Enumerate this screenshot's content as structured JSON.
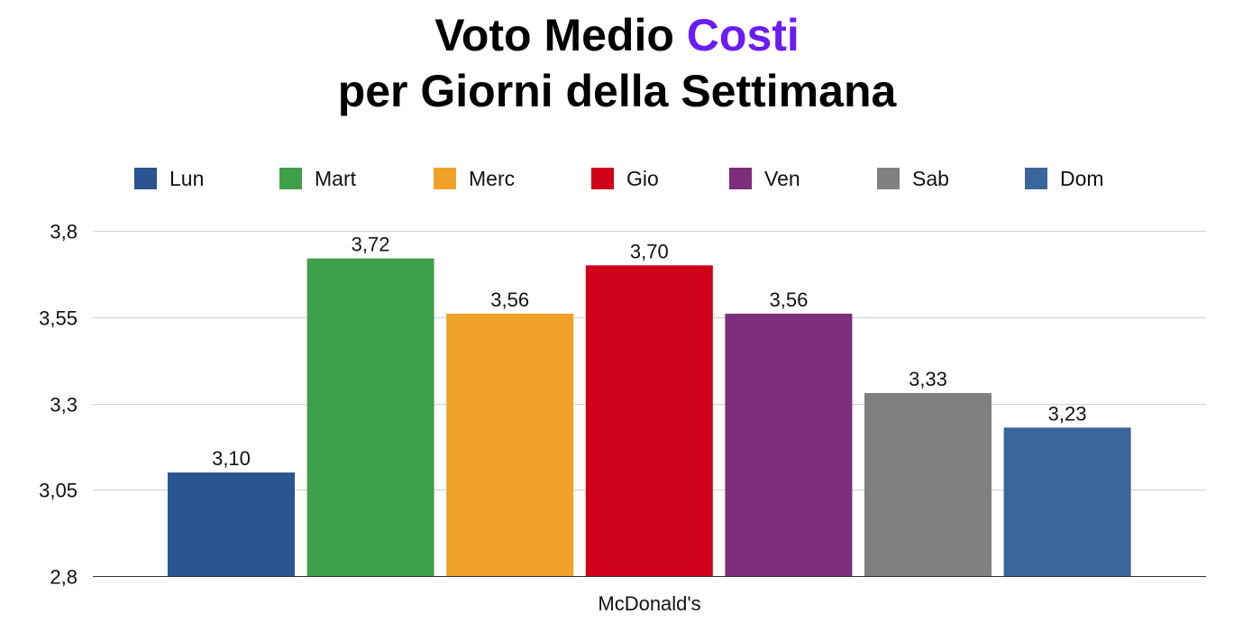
{
  "chart_data": {
    "type": "bar",
    "title_prefix": "Voto Medio",
    "title_highlight": "Costi",
    "title_line2": "per Giorni della Settimana",
    "categories": [
      "McDonald's"
    ],
    "series": [
      {
        "name": "Lun",
        "values": [
          3.1
        ],
        "label": "3,10",
        "color": "#2a5590"
      },
      {
        "name": "Mart",
        "values": [
          3.72
        ],
        "label": "3,72",
        "color": "#409f4a"
      },
      {
        "name": "Merc",
        "values": [
          3.56
        ],
        "label": "3,56",
        "color": "#f0a128"
      },
      {
        "name": "Gio",
        "values": [
          3.7
        ],
        "label": "3,70",
        "color": "#cf0019"
      },
      {
        "name": "Ven",
        "values": [
          3.56
        ],
        "label": "3,56",
        "color": "#7c2e7c"
      },
      {
        "name": "Sab",
        "values": [
          3.33
        ],
        "label": "3,33",
        "color": "#7e8180"
      },
      {
        "name": "Dom",
        "values": [
          3.23
        ],
        "label": "3,23",
        "color": "#3b669b"
      }
    ],
    "yticks": [
      2.8,
      3.05,
      3.3,
      3.55,
      3.8
    ],
    "ytick_labels": [
      "2,8",
      "3,05",
      "3,3",
      "3,55",
      "3,8"
    ],
    "ylim": [
      2.8,
      3.8
    ],
    "grid": true,
    "legend": "top",
    "xlabel": "",
    "ylabel": ""
  }
}
